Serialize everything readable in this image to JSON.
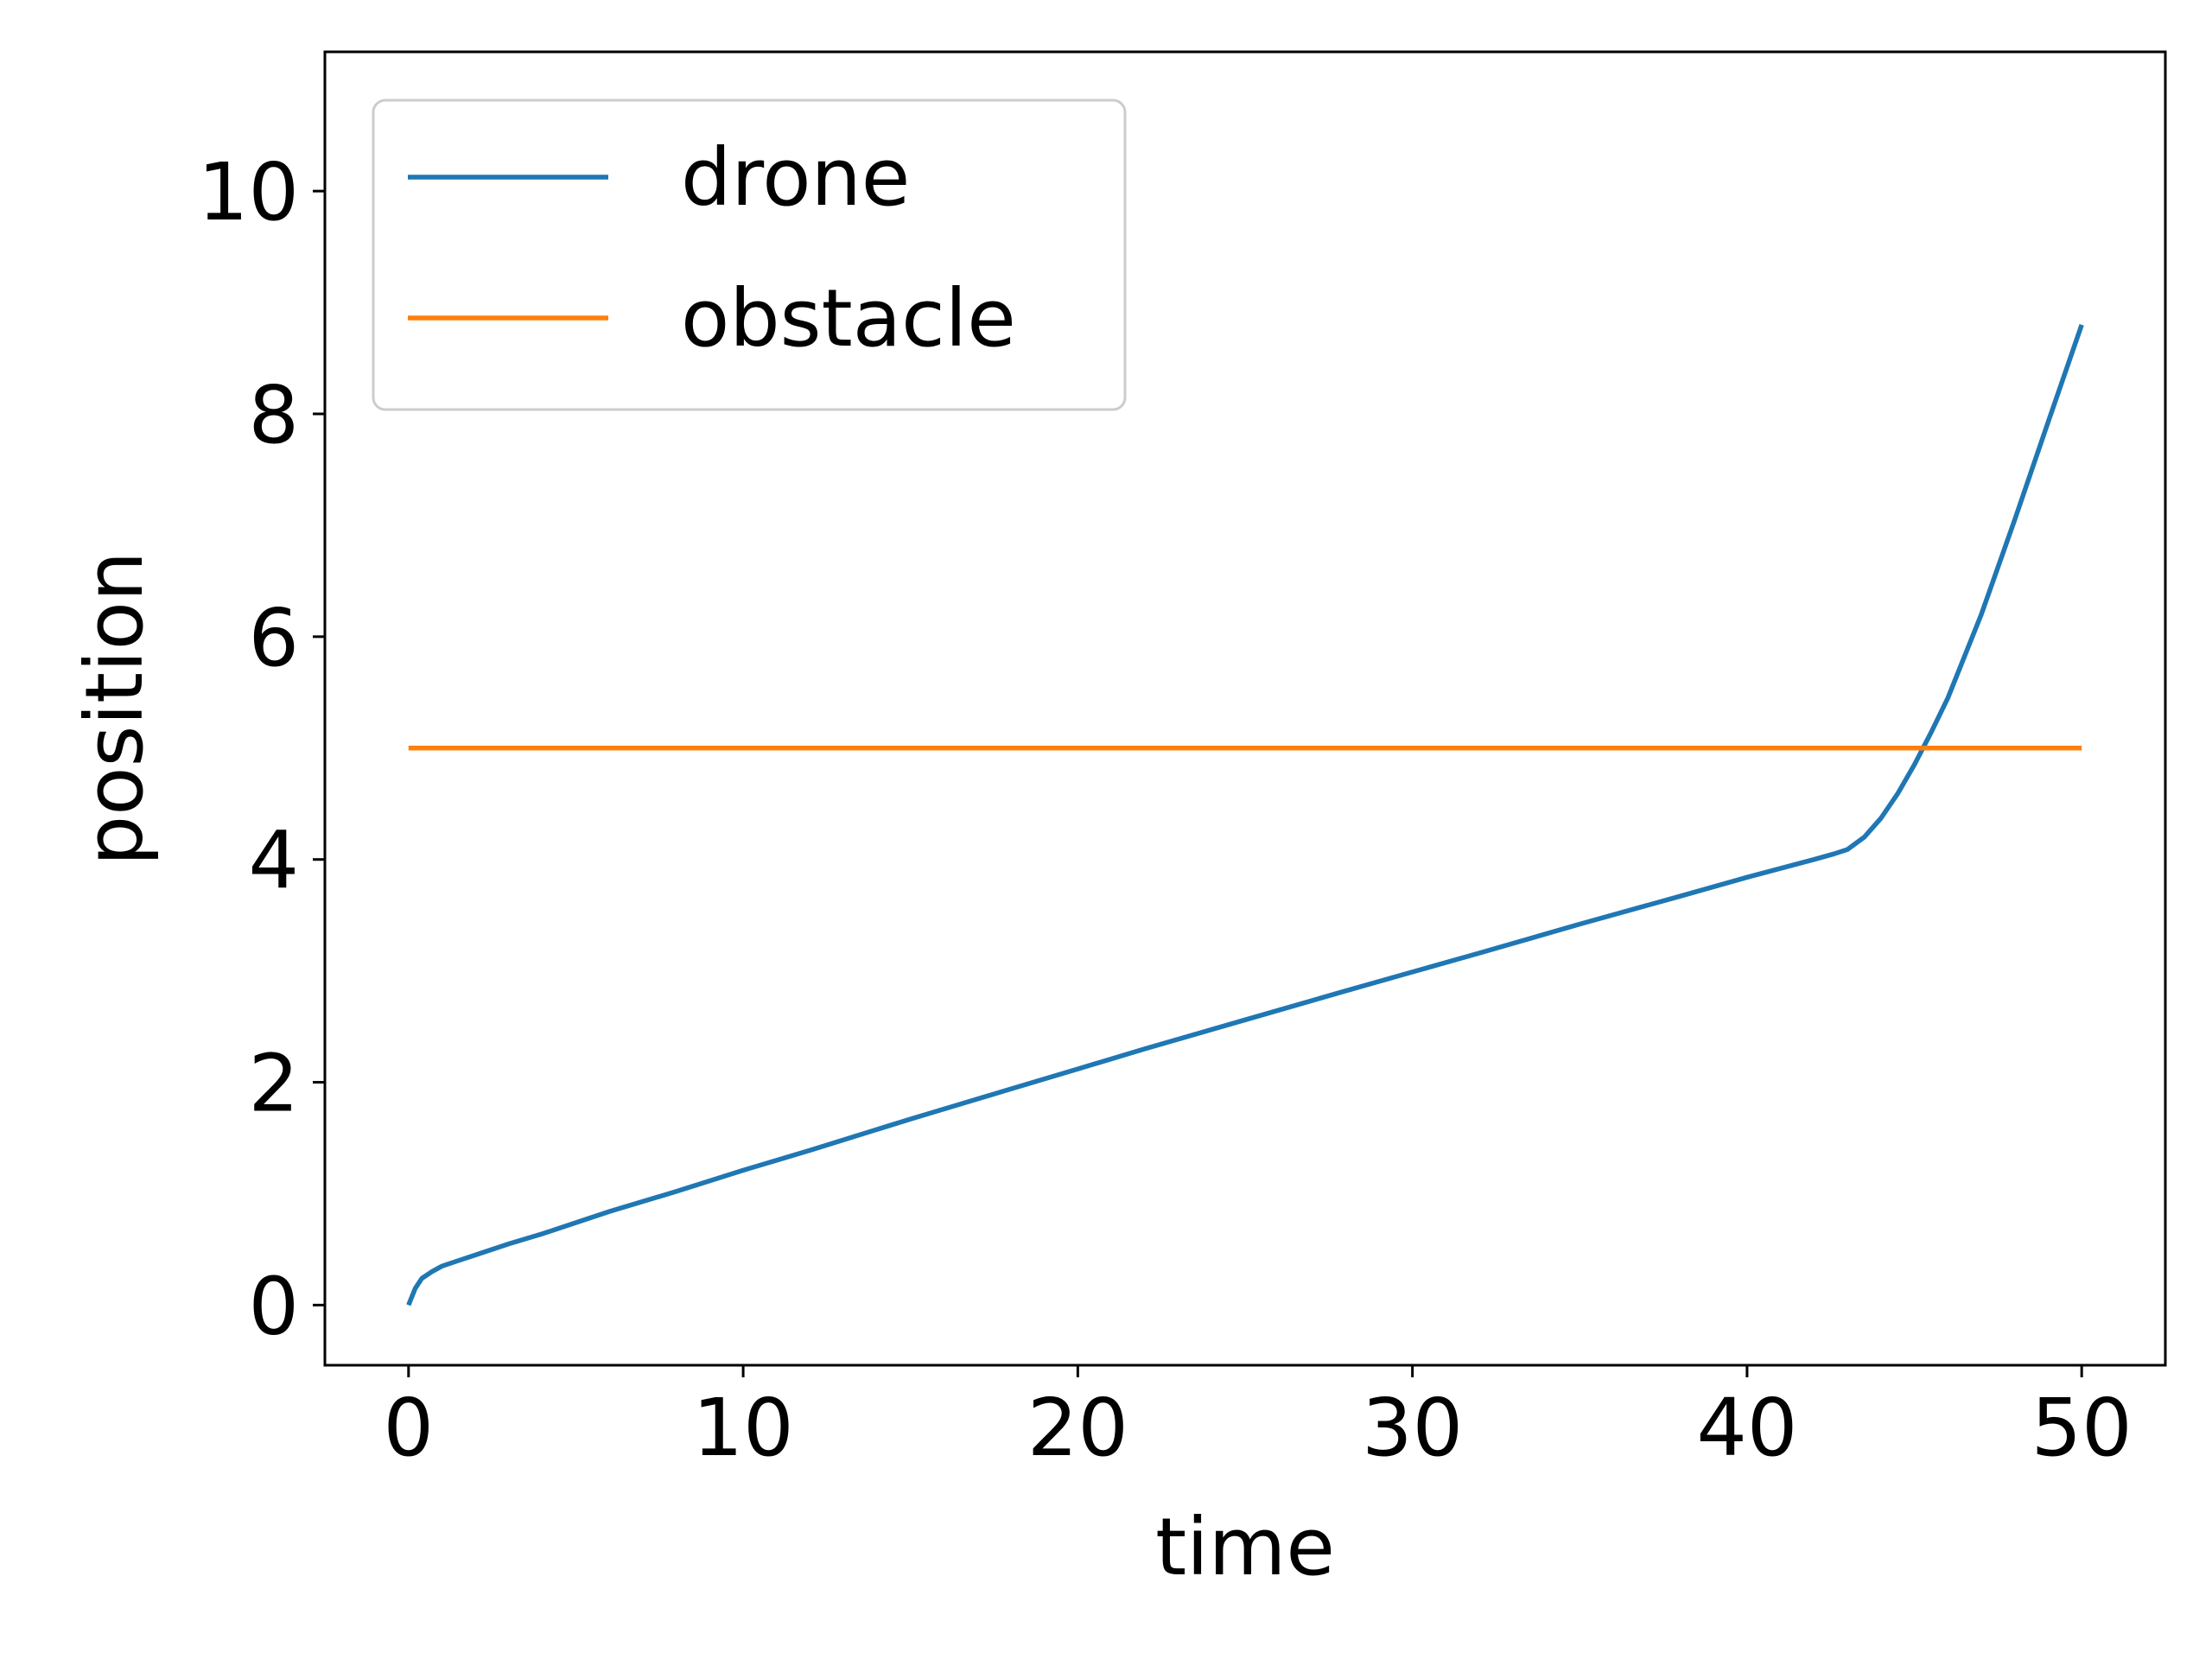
{
  "chart_data": {
    "type": "line",
    "title": "",
    "xlabel": "time",
    "ylabel": "position",
    "xlim": [
      -2.5,
      52.5
    ],
    "ylim": [
      -0.54,
      11.25
    ],
    "x_ticks": [
      0,
      10,
      20,
      30,
      40,
      50
    ],
    "y_ticks": [
      0,
      2,
      4,
      6,
      8,
      10
    ],
    "grid": false,
    "legend_position": "upper left",
    "series": [
      {
        "name": "drone",
        "color": "#1f77b4",
        "x": [
          0,
          0.2,
          0.4,
          0.7,
          1,
          1.5,
          2,
          3,
          4,
          5,
          6,
          8,
          10,
          12,
          15,
          18,
          20,
          22,
          25,
          28,
          30,
          32,
          35,
          38,
          40,
          42,
          42.6,
          43,
          43.5,
          44,
          44.5,
          45,
          45.5,
          46,
          47,
          48,
          49,
          50
        ],
        "y": [
          0,
          0.15,
          0.24,
          0.3,
          0.35,
          0.4,
          0.45,
          0.55,
          0.64,
          0.74,
          0.84,
          1.02,
          1.21,
          1.39,
          1.67,
          1.94,
          2.12,
          2.3,
          2.56,
          2.82,
          2.99,
          3.16,
          3.42,
          3.67,
          3.84,
          4.0,
          4.05,
          4.09,
          4.2,
          4.37,
          4.59,
          4.85,
          5.14,
          5.45,
          6.2,
          7.05,
          7.93,
          8.8
        ]
      },
      {
        "name": "obstacle",
        "color": "#ff7f0e",
        "x": [
          0,
          50
        ],
        "y": [
          5,
          5
        ]
      }
    ]
  }
}
